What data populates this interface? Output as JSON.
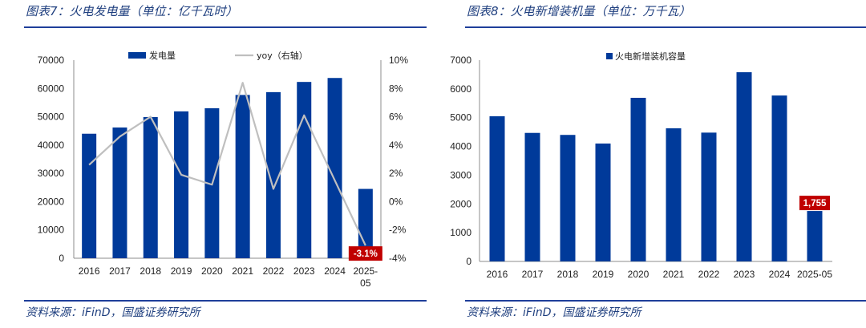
{
  "colors": {
    "bar": "#003a9a",
    "line": "#bfbfbf",
    "callout": "#c00000",
    "heading": "#1f3f7f",
    "rule": "#1f3f9a"
  },
  "left": {
    "caption": "图表7：火电发电量（单位：亿千瓦时）",
    "source": "资料来源：iFinD，国盛证券研究所",
    "chart_data": {
      "type": "bar",
      "categories": [
        "2016",
        "2017",
        "2018",
        "2019",
        "2020",
        "2021",
        "2022",
        "2023",
        "2024",
        "2025-05"
      ],
      "series": [
        {
          "name": "发电量",
          "type": "bar",
          "axis": "left",
          "values": [
            44000,
            46200,
            49900,
            51900,
            53000,
            57700,
            58700,
            62300,
            63700,
            24500
          ]
        },
        {
          "name": "yoy（右轴）",
          "type": "line",
          "axis": "right",
          "values": [
            2.6,
            4.6,
            6.0,
            1.9,
            1.2,
            8.4,
            0.9,
            6.1,
            1.5,
            -3.1
          ]
        }
      ],
      "yleft": {
        "min": 0,
        "max": 70000,
        "ticks": [
          0,
          10000,
          20000,
          30000,
          40000,
          50000,
          60000,
          70000
        ]
      },
      "yright": {
        "min": -4,
        "max": 10,
        "ticks": [
          "-4%",
          "-2%",
          "0%",
          "2%",
          "4%",
          "6%",
          "8%",
          "10%"
        ],
        "tick_values": [
          -4,
          -2,
          0,
          2,
          4,
          6,
          8,
          10
        ]
      },
      "callout": {
        "label": "-3.1%",
        "category": "2025-05"
      },
      "legend_position": "top"
    }
  },
  "right": {
    "caption": "图表8：火电新增装机量（单位：万千瓦）",
    "source": "资料来源：iFinD，国盛证券研究所",
    "chart_data": {
      "type": "bar",
      "categories": [
        "2016",
        "2017",
        "2018",
        "2019",
        "2020",
        "2021",
        "2022",
        "2023",
        "2024",
        "2025-05"
      ],
      "series": [
        {
          "name": "火电新增装机容量",
          "values": [
            5050,
            4470,
            4400,
            4100,
            5690,
            4630,
            4480,
            6580,
            5770,
            1755
          ]
        }
      ],
      "ylim": [
        0,
        7000
      ],
      "yticks": [
        0,
        1000,
        2000,
        3000,
        4000,
        5000,
        6000,
        7000
      ],
      "callout": {
        "label": "1,755",
        "category": "2025-05"
      },
      "legend_position": "top"
    }
  }
}
